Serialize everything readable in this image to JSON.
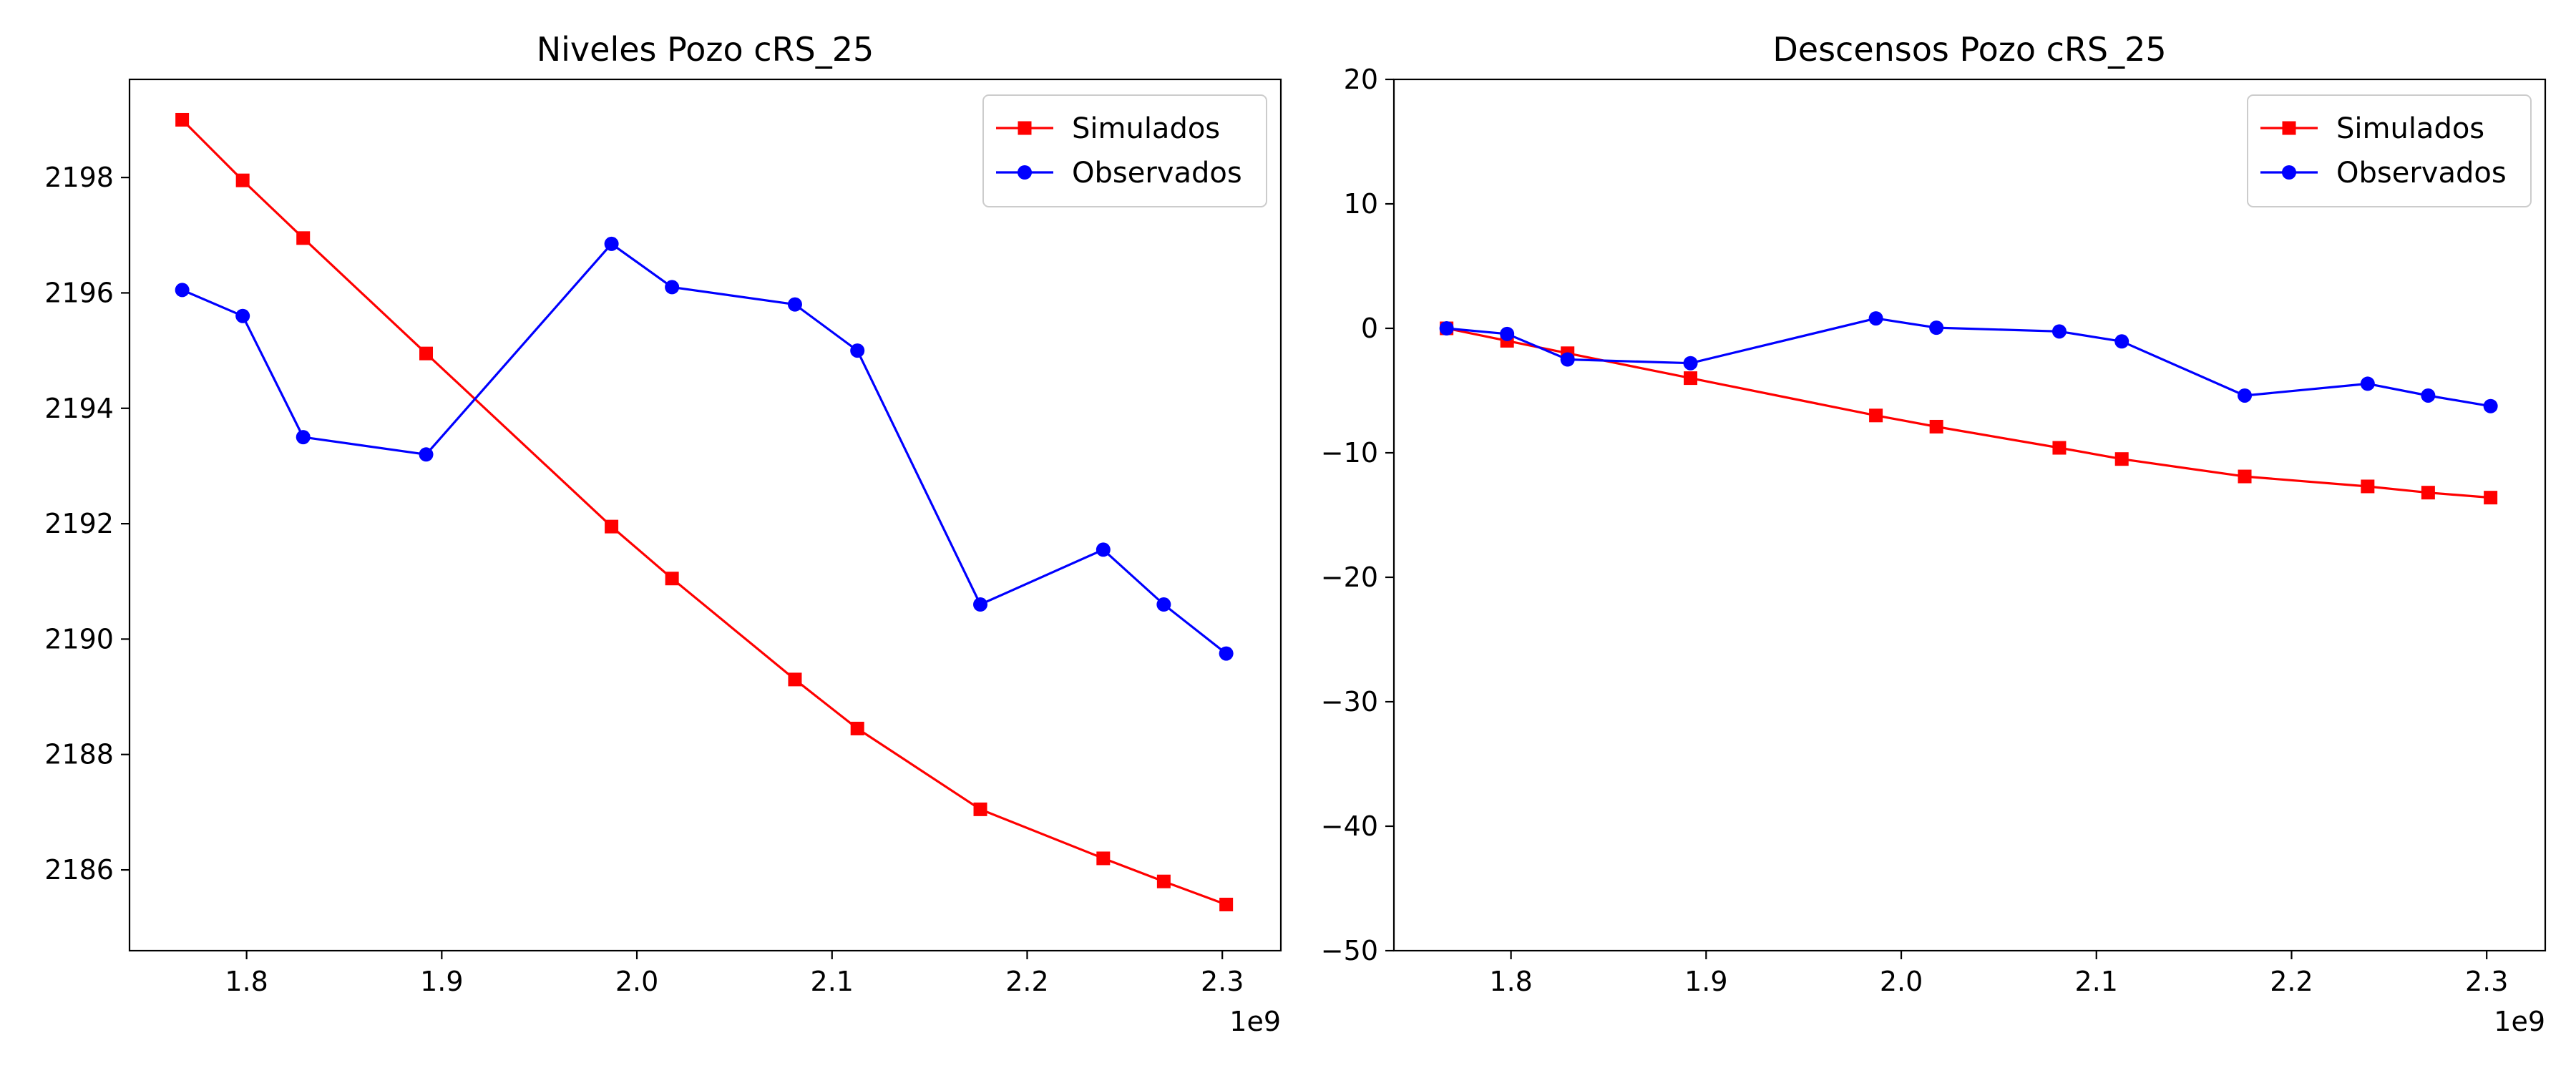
{
  "chart_data": [
    {
      "type": "line",
      "title": "Niveles Pozo cRS_25",
      "xlabel": "",
      "ylabel": "",
      "x_offset_label": "1e9",
      "xlim": [
        1.74,
        2.33
      ],
      "ylim": [
        2184.6,
        2199.7
      ],
      "xticks": [
        1.8,
        1.9,
        2.0,
        2.1,
        2.2,
        2.3
      ],
      "xtick_labels": [
        "1.8",
        "1.9",
        "2.0",
        "2.1",
        "2.2",
        "2.3"
      ],
      "yticks": [
        2186,
        2188,
        2190,
        2192,
        2194,
        2196,
        2198
      ],
      "ytick_labels": [
        "2186",
        "2188",
        "2190",
        "2192",
        "2194",
        "2196",
        "2198"
      ],
      "grid": false,
      "legend_position": "top-right",
      "x": [
        1.767,
        1.798,
        1.829,
        1.892,
        1.987,
        2.018,
        2.081,
        2.113,
        2.176,
        2.239,
        2.27,
        2.302
      ],
      "series": [
        {
          "name": "Simulados",
          "color": "#ff0000",
          "marker": "square",
          "values": [
            2199.0,
            2197.95,
            2196.95,
            2194.95,
            2191.95,
            2191.05,
            2189.3,
            2188.45,
            2187.05,
            2186.2,
            2185.8,
            2185.4
          ]
        },
        {
          "name": "Observados",
          "color": "#0000ff",
          "marker": "circle",
          "values": [
            2196.05,
            2195.6,
            2193.5,
            2193.2,
            2196.85,
            2196.1,
            2195.8,
            2195.0,
            2190.6,
            2191.55,
            2190.6,
            2189.75
          ]
        }
      ]
    },
    {
      "type": "line",
      "title": "Descensos Pozo cRS_25",
      "xlabel": "",
      "ylabel": "",
      "x_offset_label": "1e9",
      "xlim": [
        1.74,
        2.33
      ],
      "ylim": [
        -50,
        20
      ],
      "xticks": [
        1.8,
        1.9,
        2.0,
        2.1,
        2.2,
        2.3
      ],
      "xtick_labels": [
        "1.8",
        "1.9",
        "2.0",
        "2.1",
        "2.2",
        "2.3"
      ],
      "yticks": [
        -50,
        -40,
        -30,
        -20,
        -10,
        0,
        10,
        20
      ],
      "ytick_labels": [
        "−50",
        "−40",
        "−30",
        "−20",
        "−10",
        "0",
        "10",
        "20"
      ],
      "grid": false,
      "legend_position": "top-right",
      "x": [
        1.767,
        1.798,
        1.829,
        1.892,
        1.987,
        2.018,
        2.081,
        2.113,
        2.176,
        2.239,
        2.27,
        2.302
      ],
      "series": [
        {
          "name": "Simulados",
          "color": "#ff0000",
          "marker": "square",
          "values": [
            0.0,
            -1.0,
            -2.0,
            -4.0,
            -7.0,
            -7.9,
            -9.6,
            -10.5,
            -11.9,
            -12.7,
            -13.2,
            -13.6
          ]
        },
        {
          "name": "Observados",
          "color": "#0000ff",
          "marker": "circle",
          "values": [
            0.0,
            -0.45,
            -2.5,
            -2.8,
            0.8,
            0.05,
            -0.25,
            -1.05,
            -5.4,
            -4.45,
            -5.4,
            -6.25
          ]
        }
      ]
    }
  ]
}
